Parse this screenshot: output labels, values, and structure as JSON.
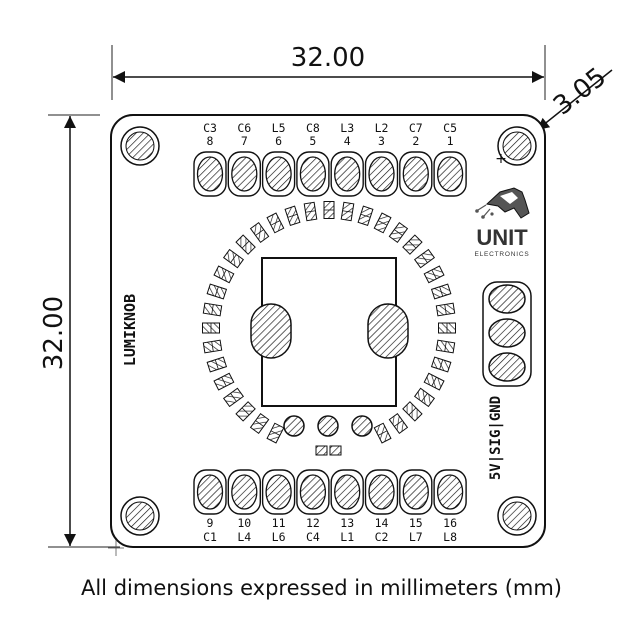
{
  "dimensions": {
    "width": "32.00",
    "height": "32.00",
    "corner": "3.05"
  },
  "board": {
    "name": "LUMIKNOB",
    "power_pins_label": "5V|SIG|GND",
    "plus_mark": "+",
    "logo": {
      "text": "UNIT",
      "subtext": "ELECTRONICS"
    },
    "top_header": [
      {
        "a": "C3",
        "b": "8"
      },
      {
        "a": "C6",
        "b": "7"
      },
      {
        "a": "L5",
        "b": "6"
      },
      {
        "a": "C8",
        "b": "5"
      },
      {
        "a": "L3",
        "b": "4"
      },
      {
        "a": "L2",
        "b": "3"
      },
      {
        "a": "C7",
        "b": "2"
      },
      {
        "a": "C5",
        "b": "1"
      }
    ],
    "bottom_header": [
      {
        "a": "9",
        "b": "C1"
      },
      {
        "a": "10",
        "b": "L4"
      },
      {
        "a": "11",
        "b": "L6"
      },
      {
        "a": "12",
        "b": "C4"
      },
      {
        "a": "13",
        "b": "L1"
      },
      {
        "a": "14",
        "b": "C2"
      },
      {
        "a": "15",
        "b": "L7"
      },
      {
        "a": "16",
        "b": "L8"
      }
    ]
  },
  "caption": "All dimensions expressed in millimeters (mm)"
}
